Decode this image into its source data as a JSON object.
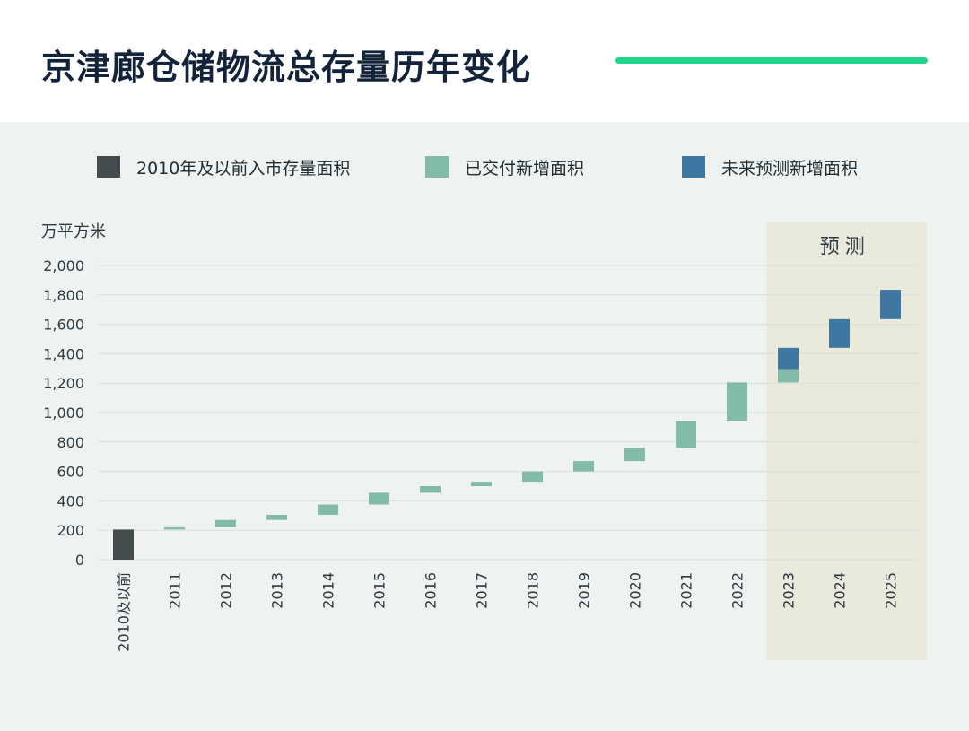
{
  "page": {
    "title": "京津廊仓储物流总存量历年变化",
    "accent_color": "#1fd68a"
  },
  "legend": [
    {
      "label": "2010年及以前入市存量面积",
      "color": "#434c4f"
    },
    {
      "label": "已交付新增面积",
      "color": "#82bca8"
    },
    {
      "label": "未来预测新增面积",
      "color": "#3e77a2"
    }
  ],
  "chart_data": {
    "type": "bar",
    "subtype": "waterfall",
    "unit_label": "万平方米",
    "forecast_label": "预测",
    "ylim": [
      0,
      2000
    ],
    "yticks": [
      0,
      200,
      400,
      600,
      800,
      1000,
      1200,
      1400,
      1600,
      1800,
      2000
    ],
    "ytick_labels": [
      "0",
      "200",
      "400",
      "600",
      "800",
      "1,000",
      "1,200",
      "1,400",
      "1,600",
      "1,800",
      "2,000"
    ],
    "grid": true,
    "categories": [
      "2010及以前",
      "2011",
      "2012",
      "2013",
      "2014",
      "2015",
      "2016",
      "2017",
      "2018",
      "2019",
      "2020",
      "2021",
      "2022",
      "2023",
      "2024",
      "2025"
    ],
    "forecast_categories": [
      "2023",
      "2024",
      "2025"
    ],
    "series": [
      {
        "name": "2010年及以前入市存量面积",
        "color": "#434c4f",
        "bars": [
          {
            "category": "2010及以前",
            "start": 0,
            "end": 205
          }
        ]
      },
      {
        "name": "已交付新增面积",
        "color": "#82bca8",
        "bars": [
          {
            "category": "2011",
            "start": 205,
            "end": 220
          },
          {
            "category": "2012",
            "start": 220,
            "end": 270
          },
          {
            "category": "2013",
            "start": 270,
            "end": 305
          },
          {
            "category": "2014",
            "start": 305,
            "end": 375
          },
          {
            "category": "2015",
            "start": 375,
            "end": 455
          },
          {
            "category": "2016",
            "start": 455,
            "end": 500
          },
          {
            "category": "2017",
            "start": 500,
            "end": 530
          },
          {
            "category": "2018",
            "start": 530,
            "end": 600
          },
          {
            "category": "2019",
            "start": 600,
            "end": 670
          },
          {
            "category": "2020",
            "start": 670,
            "end": 760
          },
          {
            "category": "2021",
            "start": 760,
            "end": 945
          },
          {
            "category": "2022",
            "start": 945,
            "end": 1205
          },
          {
            "category": "2023",
            "start": 1205,
            "end": 1295
          }
        ]
      },
      {
        "name": "未来预测新增面积",
        "color": "#3e77a2",
        "bars": [
          {
            "category": "2023",
            "start": 1295,
            "end": 1440
          },
          {
            "category": "2024",
            "start": 1440,
            "end": 1635
          },
          {
            "category": "2025",
            "start": 1635,
            "end": 1835
          }
        ]
      }
    ]
  }
}
